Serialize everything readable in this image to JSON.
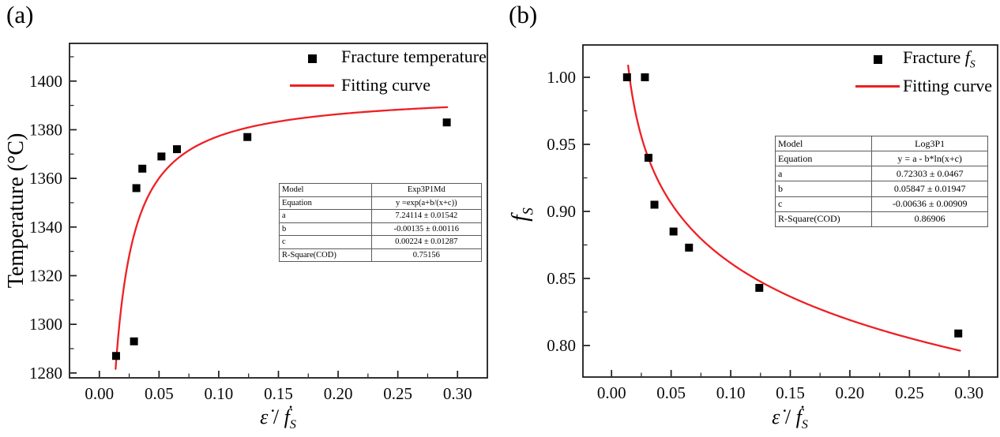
{
  "colors": {
    "red": "#ee2024",
    "black": "#000000",
    "frame": "#1c1c1c",
    "tick_text": "#0a0a0a",
    "table_border": "#5a5a5a"
  },
  "panels": [
    {
      "id": "a",
      "panel_label": "(a)",
      "ylabel": {
        "prefix": "Temperature (°C)",
        "f": "",
        "sub": ""
      },
      "xlabel": {
        "eps": "ε̇",
        "sep": " / ",
        "f": "ḟ",
        "sub": "S"
      },
      "legend": [
        {
          "marker": "square",
          "label_prefix": "Fracture temperature",
          "f": "",
          "sub": ""
        },
        {
          "marker": "line",
          "label_prefix": "Fitting curve",
          "f": "",
          "sub": ""
        }
      ],
      "table": {
        "rows": [
          [
            "Model",
            "Exp3P1Md"
          ],
          [
            "Equation",
            "y =exp(a+b/(x+c))"
          ],
          [
            "a",
            "7.24114 ± 0.01542"
          ],
          [
            "b",
            "-0.00135 ± 0.00116"
          ],
          [
            "c",
            "0.00224 ± 0.01287"
          ],
          [
            "R-Square(COD)",
            "0.75156"
          ]
        ]
      }
    },
    {
      "id": "b",
      "panel_label": "(b)",
      "ylabel": {
        "prefix": "",
        "f": "f",
        "sub": "S"
      },
      "xlabel": {
        "eps": "ε̇",
        "sep": " / ",
        "f": "ḟ",
        "sub": "S"
      },
      "legend": [
        {
          "marker": "square",
          "label_prefix": "Fracture ",
          "f": "f",
          "sub": "S"
        },
        {
          "marker": "line",
          "label_prefix": "Fitting curve",
          "f": "",
          "sub": ""
        }
      ],
      "table": {
        "rows": [
          [
            "Model",
            "Log3P1"
          ],
          [
            "Equation",
            "y = a - b*ln(x+c)"
          ],
          [
            "a",
            "0.72303 ± 0.0467"
          ],
          [
            "b",
            "0.05847 ± 0.01947"
          ],
          [
            "c",
            "-0.00636 ± 0.00909"
          ],
          [
            "R-Square(COD)",
            "0.86906"
          ]
        ]
      }
    }
  ],
  "chart_data": [
    {
      "type": "scatter",
      "panel": "a",
      "title": "(a)",
      "xlabel": "ε̇ / ḟS",
      "ylabel": "Temperature (°C)",
      "grid": false,
      "legend_position": "top-right",
      "legend": [
        "Fracture temperature",
        "Fitting curve"
      ],
      "xlim": [
        -0.025,
        0.325
      ],
      "ylim": [
        1278,
        1415.5
      ],
      "x_ticks": {
        "values": [
          0.0,
          0.05,
          0.1,
          0.15,
          0.2,
          0.25,
          0.3
        ],
        "labels": [
          "0.00",
          "0.05",
          "0.10",
          "0.15",
          "0.20",
          "0.25",
          "0.30"
        ],
        "minor": [
          0.025,
          0.075,
          0.125,
          0.175,
          0.225,
          0.275
        ]
      },
      "y_ticks": {
        "values": [
          1280,
          1300,
          1320,
          1340,
          1360,
          1380,
          1400
        ],
        "labels": [
          "1280",
          "1300",
          "1320",
          "1340",
          "1360",
          "1380",
          "1400"
        ],
        "minor": [
          1290,
          1310,
          1330,
          1350,
          1370,
          1390,
          1410
        ]
      },
      "scatter": {
        "name": "Fracture temperature",
        "marker": "square",
        "x": [
          0.014,
          0.029,
          0.031,
          0.036,
          0.052,
          0.065,
          0.124,
          0.291
        ],
        "y": [
          1287,
          1293,
          1356,
          1364,
          1369,
          1372,
          1377,
          1383
        ]
      },
      "fit": {
        "name": "Fitting curve",
        "model": "Exp3P1Md",
        "equation": "y =exp(a+b/(x+c))",
        "a": 7.24114,
        "b": -0.00135,
        "c": 0.00224,
        "r_square": 0.75156,
        "x_range": [
          0.0136,
          0.2914
        ]
      }
    },
    {
      "type": "scatter",
      "panel": "b",
      "title": "(b)",
      "xlabel": "ε̇ / ḟS",
      "ylabel": "fS",
      "grid": false,
      "legend_position": "top-right",
      "legend": [
        "Fracture fS",
        "Fitting curve"
      ],
      "xlim": [
        -0.024,
        0.324
      ],
      "ylim": [
        0.7765,
        1.0241
      ],
      "x_ticks": {
        "values": [
          0.0,
          0.05,
          0.1,
          0.15,
          0.2,
          0.25,
          0.3
        ],
        "labels": [
          "0.00",
          "0.05",
          "0.10",
          "0.15",
          "0.20",
          "0.25",
          "0.30"
        ],
        "minor": [
          0.025,
          0.075,
          0.125,
          0.175,
          0.225,
          0.275
        ]
      },
      "y_ticks": {
        "values": [
          0.8,
          0.85,
          0.9,
          0.95,
          1.0
        ],
        "labels": [
          "0.80",
          "0.85",
          "0.90",
          "0.95",
          "1.00"
        ],
        "minor": [
          0.825,
          0.875,
          0.925,
          0.975
        ]
      },
      "scatter": {
        "name": "Fracture fS",
        "marker": "square",
        "x": [
          0.013,
          0.028,
          0.031,
          0.036,
          0.052,
          0.065,
          0.124,
          0.291
        ],
        "y": [
          1.0,
          1.0,
          0.94,
          0.905,
          0.885,
          0.873,
          0.843,
          0.809
        ]
      },
      "fit": {
        "name": "Fitting curve",
        "model": "Log3P1",
        "equation": "y = a - b*ln(x+c)",
        "a": 0.72303,
        "b": 0.05847,
        "c": -0.00636,
        "r_square": 0.86906,
        "x_range": [
          0.0139,
          0.2925
        ]
      }
    }
  ]
}
